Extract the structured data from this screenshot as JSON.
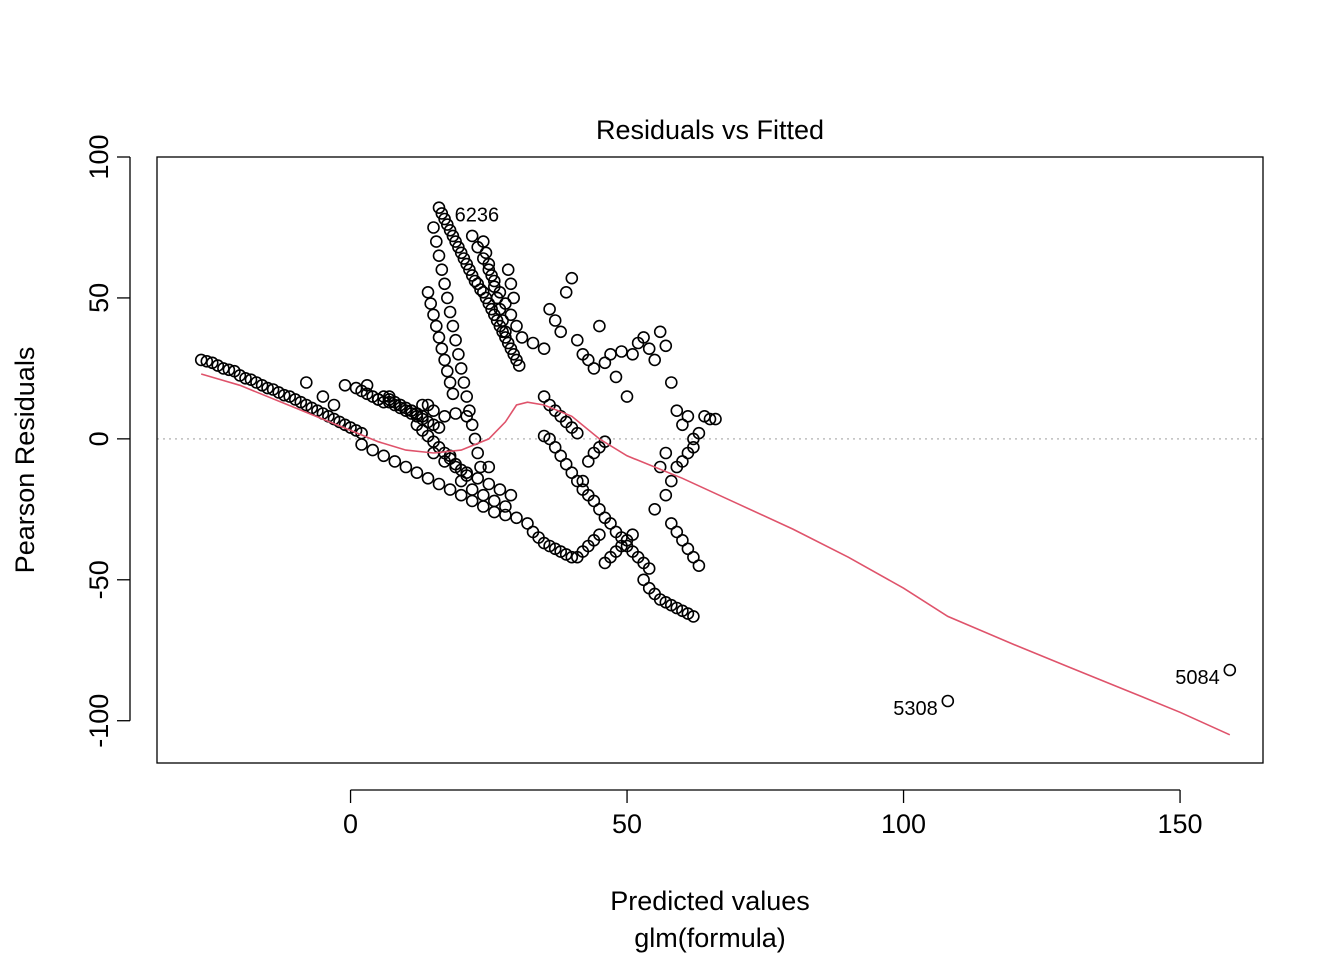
{
  "chart_data": {
    "type": "scatter",
    "title": "Residuals vs Fitted",
    "xlabel": "Predicted values",
    "xlabel_sub": "glm(formula)",
    "ylabel": "Pearson Residuals",
    "xlim": [
      -35,
      165
    ],
    "ylim": [
      -115,
      100
    ],
    "x_ticks": [
      0,
      50,
      100,
      150
    ],
    "y_ticks": [
      -100,
      -50,
      0,
      50,
      100
    ],
    "x_tick_labels": [
      "0",
      "50",
      "100",
      "150"
    ],
    "y_tick_labels": [
      "-100",
      "-50",
      "0",
      "50",
      "100"
    ],
    "reference_line_y": 0,
    "colors": {
      "points": "#000000",
      "smooth": "#DF536B",
      "reference": "#BEBEBE"
    },
    "points": [
      [
        -27,
        28
      ],
      [
        -26,
        27.5
      ],
      [
        -25,
        27
      ],
      [
        -24,
        26
      ],
      [
        -23,
        25
      ],
      [
        -22,
        24.5
      ],
      [
        -21,
        24
      ],
      [
        -20,
        22.5
      ],
      [
        -19,
        21.5
      ],
      [
        -18,
        21
      ],
      [
        -17,
        20
      ],
      [
        -16,
        19
      ],
      [
        -15,
        18
      ],
      [
        -14,
        17.5
      ],
      [
        -13,
        16.5
      ],
      [
        -12,
        15.5
      ],
      [
        -11,
        15
      ],
      [
        -10,
        14
      ],
      [
        -9,
        13
      ],
      [
        -8,
        12
      ],
      [
        -7,
        11
      ],
      [
        -6,
        10
      ],
      [
        -5,
        9
      ],
      [
        -4,
        8
      ],
      [
        -3,
        7
      ],
      [
        -2,
        6
      ],
      [
        -1,
        5
      ],
      [
        0,
        4
      ],
      [
        1,
        3
      ],
      [
        2,
        2
      ],
      [
        -8,
        20
      ],
      [
        -5,
        15
      ],
      [
        -3,
        12
      ],
      [
        -1,
        19
      ],
      [
        1,
        18
      ],
      [
        2,
        17
      ],
      [
        3,
        16
      ],
      [
        4,
        15
      ],
      [
        5,
        14
      ],
      [
        6,
        13
      ],
      [
        7,
        13
      ],
      [
        8,
        12
      ],
      [
        9,
        11
      ],
      [
        10,
        10
      ],
      [
        11,
        9
      ],
      [
        12,
        8
      ],
      [
        13,
        7
      ],
      [
        14,
        6
      ],
      [
        15,
        5
      ],
      [
        16,
        4
      ],
      [
        3,
        19
      ],
      [
        5,
        14
      ],
      [
        7,
        15
      ],
      [
        9,
        12
      ],
      [
        11,
        10
      ],
      [
        13,
        12
      ],
      [
        15,
        10
      ],
      [
        17,
        8
      ],
      [
        19,
        9
      ],
      [
        21,
        8
      ],
      [
        2,
        -2
      ],
      [
        4,
        -4
      ],
      [
        6,
        -6
      ],
      [
        8,
        -8
      ],
      [
        10,
        -10
      ],
      [
        12,
        -12
      ],
      [
        14,
        -14
      ],
      [
        16,
        -16
      ],
      [
        18,
        -18
      ],
      [
        20,
        -20
      ],
      [
        22,
        -22
      ],
      [
        24,
        -24
      ],
      [
        26,
        -26
      ],
      [
        28,
        -27
      ],
      [
        30,
        -28
      ],
      [
        20,
        -15
      ],
      [
        22,
        -18
      ],
      [
        24,
        -20
      ],
      [
        26,
        -22
      ],
      [
        28,
        -24
      ],
      [
        15,
        -5
      ],
      [
        17,
        -8
      ],
      [
        19,
        -10
      ],
      [
        21,
        -12
      ],
      [
        23,
        -14
      ],
      [
        25,
        -16
      ],
      [
        27,
        -18
      ],
      [
        29,
        -20
      ],
      [
        18,
        -6
      ],
      [
        25,
        -10
      ],
      [
        16,
        82
      ],
      [
        16.5,
        80
      ],
      [
        17,
        78
      ],
      [
        17.5,
        76
      ],
      [
        18,
        74
      ],
      [
        18.5,
        72
      ],
      [
        19,
        70
      ],
      [
        19.5,
        68
      ],
      [
        20,
        66
      ],
      [
        20.5,
        64
      ],
      [
        21,
        62
      ],
      [
        21.5,
        60
      ],
      [
        22,
        58
      ],
      [
        22.5,
        56
      ],
      [
        23,
        55
      ],
      [
        23.5,
        53
      ],
      [
        24,
        52
      ],
      [
        24.5,
        50
      ],
      [
        25,
        48
      ],
      [
        25.5,
        46
      ],
      [
        26,
        44
      ],
      [
        26.5,
        42
      ],
      [
        27,
        40
      ],
      [
        27.5,
        38
      ],
      [
        28,
        36
      ],
      [
        28.5,
        34
      ],
      [
        29,
        32
      ],
      [
        29.5,
        30
      ],
      [
        30,
        28
      ],
      [
        30.5,
        26
      ],
      [
        15,
        75
      ],
      [
        15.5,
        70
      ],
      [
        16,
        65
      ],
      [
        16.5,
        60
      ],
      [
        17,
        55
      ],
      [
        17.5,
        50
      ],
      [
        18,
        45
      ],
      [
        18.5,
        40
      ],
      [
        19,
        35
      ],
      [
        19.5,
        30
      ],
      [
        20,
        25
      ],
      [
        20.5,
        20
      ],
      [
        21,
        15
      ],
      [
        21.5,
        10
      ],
      [
        22,
        5
      ],
      [
        22.5,
        0
      ],
      [
        23,
        -5
      ],
      [
        23.5,
        -10
      ],
      [
        24,
        70
      ],
      [
        24.5,
        66
      ],
      [
        25,
        62
      ],
      [
        25.5,
        58
      ],
      [
        26,
        54
      ],
      [
        26.5,
        50
      ],
      [
        27,
        46
      ],
      [
        27.5,
        42
      ],
      [
        28,
        38
      ],
      [
        28.5,
        60
      ],
      [
        29,
        55
      ],
      [
        29.5,
        50
      ],
      [
        14,
        52
      ],
      [
        14.5,
        48
      ],
      [
        15,
        44
      ],
      [
        15.5,
        40
      ],
      [
        16,
        36
      ],
      [
        16.5,
        32
      ],
      [
        17,
        28
      ],
      [
        17.5,
        24
      ],
      [
        18,
        20
      ],
      [
        18.5,
        16
      ],
      [
        22,
        72
      ],
      [
        23,
        68
      ],
      [
        24,
        64
      ],
      [
        25,
        60
      ],
      [
        26,
        56
      ],
      [
        27,
        52
      ],
      [
        28,
        48
      ],
      [
        29,
        44
      ],
      [
        30,
        40
      ],
      [
        31,
        36
      ],
      [
        33,
        34
      ],
      [
        35,
        32
      ],
      [
        36,
        46
      ],
      [
        37,
        42
      ],
      [
        38,
        38
      ],
      [
        39,
        52
      ],
      [
        40,
        57
      ],
      [
        41,
        35
      ],
      [
        42,
        30
      ],
      [
        43,
        28
      ],
      [
        44,
        25
      ],
      [
        45,
        40
      ],
      [
        46,
        27
      ],
      [
        47,
        30
      ],
      [
        48,
        22
      ],
      [
        49,
        31
      ],
      [
        50,
        15
      ],
      [
        51,
        30
      ],
      [
        52,
        34
      ],
      [
        53,
        36
      ],
      [
        54,
        32
      ],
      [
        55,
        28
      ],
      [
        56,
        38
      ],
      [
        57,
        33
      ],
      [
        58,
        20
      ],
      [
        59,
        10
      ],
      [
        60,
        5
      ],
      [
        61,
        8
      ],
      [
        62,
        0
      ],
      [
        63,
        2
      ],
      [
        64,
        8
      ],
      [
        65,
        7
      ],
      [
        66,
        7
      ],
      [
        35,
        15
      ],
      [
        36,
        12
      ],
      [
        37,
        10
      ],
      [
        38,
        8
      ],
      [
        39,
        6
      ],
      [
        40,
        4
      ],
      [
        41,
        2
      ],
      [
        35,
        1
      ],
      [
        36,
        0
      ],
      [
        37,
        -3
      ],
      [
        38,
        -6
      ],
      [
        39,
        -9
      ],
      [
        40,
        -12
      ],
      [
        41,
        -15
      ],
      [
        42,
        -18
      ],
      [
        43,
        -20
      ],
      [
        44,
        -22
      ],
      [
        45,
        -25
      ],
      [
        46,
        -28
      ],
      [
        47,
        -30
      ],
      [
        48,
        -33
      ],
      [
        49,
        -35
      ],
      [
        50,
        -38
      ],
      [
        51,
        -40
      ],
      [
        52,
        -42
      ],
      [
        53,
        -44
      ],
      [
        54,
        -46
      ],
      [
        32,
        -30
      ],
      [
        33,
        -33
      ],
      [
        34,
        -35
      ],
      [
        35,
        -37
      ],
      [
        36,
        -38
      ],
      [
        37,
        -39
      ],
      [
        38,
        -40
      ],
      [
        39,
        -41
      ],
      [
        40,
        -42
      ],
      [
        41,
        -42
      ],
      [
        42,
        -40
      ],
      [
        43,
        -38
      ],
      [
        44,
        -36
      ],
      [
        45,
        -34
      ],
      [
        46,
        -44
      ],
      [
        47,
        -42
      ],
      [
        48,
        -40
      ],
      [
        49,
        -38
      ],
      [
        50,
        -36
      ],
      [
        51,
        -34
      ],
      [
        53,
        -50
      ],
      [
        54,
        -53
      ],
      [
        55,
        -55
      ],
      [
        56,
        -57
      ],
      [
        57,
        -58
      ],
      [
        58,
        -59
      ],
      [
        59,
        -60
      ],
      [
        60,
        -61
      ],
      [
        61,
        -62
      ],
      [
        62,
        -63
      ],
      [
        58,
        -30
      ],
      [
        59,
        -33
      ],
      [
        60,
        -36
      ],
      [
        61,
        -39
      ],
      [
        62,
        -42
      ],
      [
        63,
        -45
      ],
      [
        57,
        -20
      ],
      [
        58,
        -15
      ],
      [
        59,
        -10
      ],
      [
        60,
        -8
      ],
      [
        61,
        -5
      ],
      [
        62,
        -3
      ],
      [
        55,
        -25
      ],
      [
        56,
        -10
      ],
      [
        57,
        -5
      ],
      [
        43,
        -8
      ],
      [
        44,
        -5
      ],
      [
        45,
        -3
      ],
      [
        46,
        -1
      ],
      [
        42,
        -15
      ],
      [
        5,
        14
      ],
      [
        6,
        15
      ],
      [
        7,
        14
      ],
      [
        8,
        13
      ],
      [
        9,
        12
      ],
      [
        10,
        11
      ],
      [
        11,
        10
      ],
      [
        12,
        9
      ],
      [
        13,
        8
      ],
      [
        14,
        12
      ],
      [
        12,
        5
      ],
      [
        13,
        3
      ],
      [
        14,
        1
      ],
      [
        15,
        -1
      ],
      [
        16,
        -3
      ],
      [
        17,
        -5
      ],
      [
        18,
        -7
      ],
      [
        19,
        -9
      ],
      [
        20,
        -11
      ],
      [
        21,
        -13
      ],
      [
        108,
        -93
      ],
      [
        159,
        -82
      ]
    ],
    "smooth_line": {
      "x": [
        -27,
        -20,
        -10,
        0,
        5,
        10,
        15,
        20,
        25,
        28,
        30,
        32,
        35,
        40,
        45,
        50,
        60,
        70,
        80,
        90,
        100,
        108,
        120,
        130,
        140,
        150,
        159
      ],
      "y": [
        23,
        19,
        11,
        3,
        -1,
        -4,
        -5,
        -4,
        0,
        6,
        12,
        13,
        12,
        8,
        0,
        -6,
        -14,
        -23,
        -32,
        -42,
        -53,
        -63,
        -73,
        -81,
        -89,
        -97,
        -105
      ]
    },
    "annotations": [
      {
        "text": "6236",
        "x": 17,
        "y": 82,
        "anchor": "start"
      },
      {
        "text": "5308",
        "x": 108,
        "y": -93,
        "anchor": "end"
      },
      {
        "text": "5084",
        "x": 159,
        "y": -82,
        "anchor": "end"
      }
    ]
  }
}
